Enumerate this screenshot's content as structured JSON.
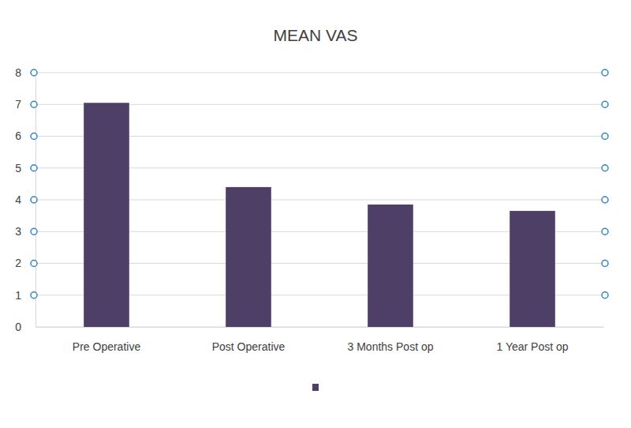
{
  "chart_data": {
    "type": "bar",
    "title": "MEAN VAS",
    "categories": [
      "Pre Operative",
      "Post Operative",
      "3 Months Post op",
      "1 Year Post op"
    ],
    "values": [
      7.05,
      4.4,
      3.85,
      3.65
    ],
    "color": "#4e3f66",
    "ylim": [
      0,
      8
    ],
    "yticks": [
      0,
      1,
      2,
      3,
      4,
      5,
      6,
      7,
      8
    ],
    "grid": true
  }
}
